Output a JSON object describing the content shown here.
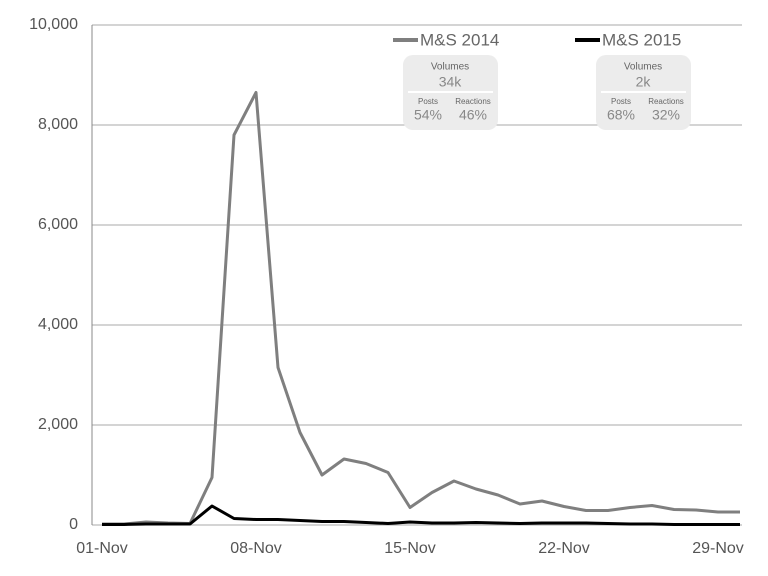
{
  "chart_data": {
    "type": "line",
    "categories": [
      "01-Nov",
      null,
      null,
      null,
      null,
      null,
      null,
      "08-Nov",
      null,
      null,
      null,
      null,
      null,
      null,
      "15-Nov",
      null,
      null,
      null,
      null,
      null,
      null,
      "22-Nov",
      null,
      null,
      null,
      null,
      null,
      null,
      "29-Nov",
      null
    ],
    "series": [
      {
        "name": "M&S 2014",
        "color": "#7f7f7f",
        "values": [
          20,
          20,
          60,
          40,
          30,
          950,
          7800,
          8650,
          3150,
          1850,
          1000,
          1320,
          1230,
          1050,
          350,
          650,
          880,
          720,
          600,
          420,
          480,
          370,
          290,
          290,
          350,
          390,
          310,
          300,
          260,
          260
        ]
      },
      {
        "name": "M&S 2015",
        "color": "#000000",
        "values": [
          10,
          10,
          20,
          20,
          20,
          380,
          130,
          110,
          110,
          90,
          70,
          70,
          50,
          30,
          60,
          40,
          40,
          50,
          40,
          30,
          40,
          40,
          40,
          30,
          20,
          20,
          10,
          10,
          10,
          10
        ]
      }
    ],
    "ylim": [
      0,
      10000
    ],
    "yticks": [
      0,
      {
        "value": 2000,
        "label": "2,000"
      },
      {
        "value": 4000,
        "label": "4,000"
      },
      {
        "value": 6000,
        "label": "6,000"
      },
      {
        "value": 8000,
        "label": "8,000"
      },
      {
        "value": 10000,
        "label": "10,000"
      }
    ],
    "grid": true,
    "summaries": [
      {
        "title": "Volumes",
        "volume": "34k",
        "posts_label": "Posts",
        "posts": "54%",
        "reactions_label": "Reactions",
        "reactions": "46%"
      },
      {
        "title": "Volumes",
        "volume": "2k",
        "posts_label": "Posts",
        "posts": "68%",
        "reactions_label": "Reactions",
        "reactions": "32%"
      }
    ]
  }
}
